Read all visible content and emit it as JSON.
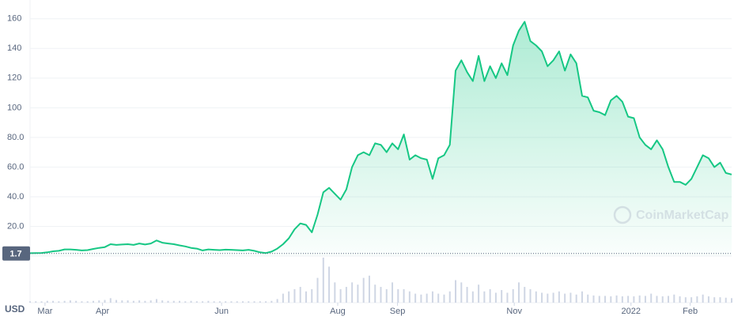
{
  "chart_data": {
    "type": "line",
    "currency": "USD",
    "watermark": "CoinMarketCap",
    "price_marker": {
      "value": 1.7,
      "label": "1.7"
    },
    "color": "#16c784",
    "grid": true,
    "ylim": [
      0,
      170
    ],
    "yticks": [
      {
        "value": 20,
        "label": "20.0"
      },
      {
        "value": 40,
        "label": "40.0"
      },
      {
        "value": 60,
        "label": "60.0"
      },
      {
        "value": 80,
        "label": "80.0"
      },
      100,
      120,
      140,
      160
    ],
    "xlim": [
      0,
      122
    ],
    "xticks": [
      {
        "value": 2.6,
        "label": "Mar"
      },
      {
        "value": 12.6,
        "label": "Apr"
      },
      {
        "value": 33.3,
        "label": "Jun"
      },
      {
        "value": 53.5,
        "label": "Aug"
      },
      {
        "value": 63.9,
        "label": "Sep"
      },
      {
        "value": 84.2,
        "label": "Nov"
      },
      {
        "value": 104.5,
        "label": "2022"
      },
      {
        "value": 114.8,
        "label": "Feb"
      }
    ],
    "values": [
      1.9,
      2.0,
      2.1,
      2.5,
      3.2,
      3.5,
      4.5,
      4.5,
      4.2,
      3.8,
      4.0,
      4.8,
      5.5,
      6.0,
      8.0,
      7.5,
      7.8,
      8.0,
      7.5,
      8.5,
      7.8,
      8.5,
      10.5,
      9.0,
      8.5,
      8.0,
      7.2,
      6.5,
      5.5,
      5.0,
      3.8,
      4.5,
      4.2,
      4.0,
      4.3,
      4.2,
      4.0,
      3.8,
      4.2,
      3.5,
      2.5,
      2.0,
      3.0,
      5.0,
      8.0,
      12.0,
      18.0,
      22.0,
      21.0,
      16.0,
      28.0,
      43.0,
      46.0,
      42.0,
      38.0,
      45.0,
      60.0,
      68.0,
      70.0,
      68.0,
      76.0,
      75.0,
      70.0,
      76.0,
      72.0,
      82.0,
      65.0,
      68.0,
      66.0,
      65.0,
      52.0,
      66.0,
      68.0,
      75.0,
      125.0,
      132.0,
      124.0,
      118.0,
      135.0,
      118.0,
      128.0,
      120.0,
      130.0,
      122.0,
      142.0,
      152.0,
      158.0,
      145.0,
      142.0,
      138.0,
      128.0,
      132.0,
      138.0,
      125.0,
      136.0,
      130.0,
      108.0,
      107.0,
      98.0,
      97.0,
      95.0,
      105.0,
      108.0,
      104.0,
      94.0,
      93.0,
      80.0,
      75.0,
      72.0,
      78.0,
      72.0,
      60.0,
      50.0,
      50.0,
      48.0,
      52.0,
      60.0,
      68.0,
      66.0,
      60.0,
      63.0,
      56.0,
      55.0
    ],
    "volume_lim": [
      0,
      100
    ],
    "volume": [
      3,
      3,
      3,
      4,
      4,
      3,
      4,
      5,
      4,
      3,
      3,
      4,
      5,
      6,
      10,
      6,
      5,
      5,
      4,
      5,
      4,
      5,
      8,
      5,
      4,
      4,
      4,
      3,
      4,
      3,
      3,
      4,
      3,
      3,
      3,
      3,
      3,
      3,
      3,
      3,
      3,
      3,
      4,
      8,
      20,
      25,
      30,
      35,
      25,
      30,
      55,
      100,
      80,
      45,
      30,
      35,
      45,
      40,
      55,
      60,
      40,
      35,
      30,
      45,
      30,
      30,
      25,
      20,
      18,
      20,
      25,
      20,
      18,
      25,
      50,
      45,
      35,
      25,
      40,
      25,
      30,
      22,
      28,
      22,
      30,
      45,
      35,
      30,
      25,
      22,
      20,
      22,
      25,
      20,
      22,
      18,
      25,
      18,
      16,
      15,
      15,
      14,
      16,
      14,
      15,
      14,
      16,
      15,
      20,
      15,
      14,
      15,
      18,
      14,
      12,
      12,
      14,
      18,
      14,
      12,
      12,
      11,
      10
    ]
  }
}
